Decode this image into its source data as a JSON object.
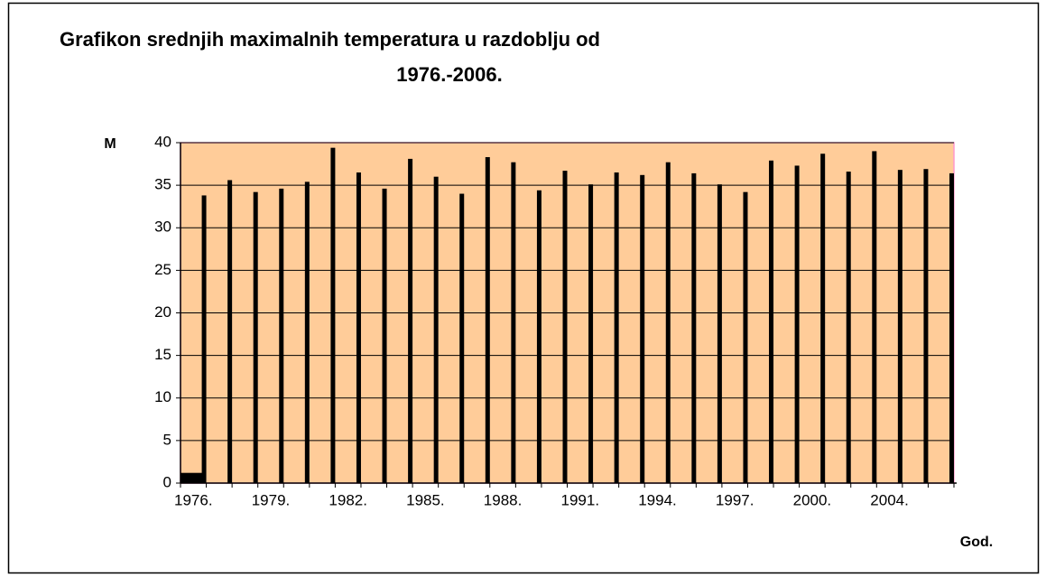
{
  "chart_data": {
    "type": "bar",
    "title": [
      "Grafikon srednjih maximalnih temperatura u razdoblju od",
      "1976.-2006."
    ],
    "y_label": "M",
    "x_label": "God.",
    "categories": [
      "1976.",
      null,
      null,
      "1979.",
      null,
      null,
      "1982.",
      null,
      null,
      "1985.",
      null,
      null,
      "1988.",
      null,
      null,
      "1991.",
      null,
      null,
      "1994.",
      null,
      null,
      "1997.",
      null,
      null,
      "2000.",
      null,
      null,
      "2004.",
      null,
      null
    ],
    "series": [
      {
        "color": "#000000",
        "values": [
          1.2,
          null,
          null,
          null,
          null,
          null,
          null,
          null,
          null,
          null,
          null,
          null,
          null,
          null,
          null,
          null,
          null,
          null,
          null,
          null,
          null,
          null,
          null,
          null,
          null,
          null,
          null,
          null,
          null,
          null
        ]
      },
      {
        "color": "#000000",
        "values": [
          33.8,
          35.6,
          34.2,
          34.6,
          35.4,
          39.4,
          36.5,
          34.6,
          38.1,
          36.0,
          34.0,
          38.3,
          37.7,
          34.4,
          36.7,
          35.1,
          36.5,
          36.2,
          37.7,
          36.4,
          35.1,
          34.2,
          37.9,
          37.3,
          38.7,
          36.6,
          39.0,
          36.8,
          36.9,
          36.4
        ]
      }
    ],
    "ylim": [
      0,
      40
    ],
    "yticks": [
      0,
      5,
      10,
      15,
      20,
      25,
      30,
      35,
      40
    ],
    "grid": true,
    "plot_background": "#FFCC99"
  }
}
